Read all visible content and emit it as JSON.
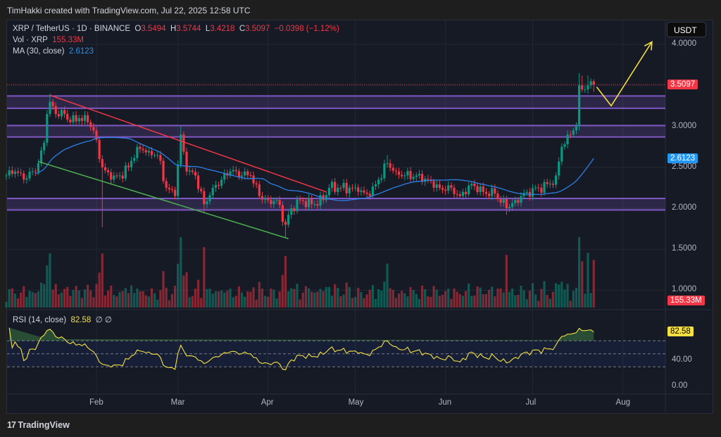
{
  "credit": "TimHakki created with TradingView.com, Jul 22, 2025 12:58 UTC",
  "header": {
    "symbol": "XRP / TetherUS · 1D · BINANCE",
    "o_label": "O",
    "open": "3.5494",
    "h_label": "H",
    "high": "3.5744",
    "l_label": "L",
    "low": "3.4218",
    "c_label": "C",
    "close": "3.5097",
    "change": "−0.0398 (−1.12%)",
    "vol_label": "Vol · XRP",
    "vol_value": "155.33M",
    "ma_label": "MA (30, close)",
    "ma_value": "2.6123",
    "rsi_label": "RSI (14, close)",
    "rsi_value": "82.58",
    "rsi_extra": "∅ ∅"
  },
  "currency_button": "USDT",
  "footer_logo": "TradingView",
  "colors": {
    "up": "#089981",
    "down": "#f23645",
    "ma": "#2962ff",
    "rsi": "#f5e042",
    "zone": "#7e57c2",
    "trend_down": "#f23645",
    "trend_support": "#4caf50",
    "projection": "#f5e042"
  },
  "chart_data": {
    "type": "candlestick",
    "price_axis": {
      "ticks": [
        "4.0000",
        "3.0000",
        "2.5000",
        "2.0000",
        "1.5000",
        "1.0000"
      ],
      "range": [
        0.8,
        4.25
      ]
    },
    "time_axis": {
      "ticks": [
        "Feb",
        "Mar",
        "Apr",
        "May",
        "Jun",
        "Jul",
        "Aug"
      ],
      "range": [
        "2025-01-01",
        "2025-08-23"
      ]
    },
    "last_price": "3.5097",
    "ma_last": "2.6123",
    "volume_last": "155.33M",
    "closes": [
      [
        "2025-01-01",
        2.4
      ],
      [
        "2025-01-04",
        2.45
      ],
      [
        "2025-01-07",
        2.35
      ],
      [
        "2025-01-10",
        2.45
      ],
      [
        "2025-01-12",
        2.55
      ],
      [
        "2025-01-14",
        2.8
      ],
      [
        "2025-01-15",
        3.15
      ],
      [
        "2025-01-16",
        3.3,
        3.4
      ],
      [
        "2025-01-18",
        3.15
      ],
      [
        "2025-01-20",
        3.2
      ],
      [
        "2025-01-23",
        3.05
      ],
      [
        "2025-01-26",
        3.1
      ],
      [
        "2025-01-29",
        3.05
      ],
      [
        "2025-01-31",
        2.95
      ],
      [
        "2025-02-02",
        2.6
      ],
      [
        "2025-02-03",
        2.5,
        null,
        1.77
      ],
      [
        "2025-02-06",
        2.35
      ],
      [
        "2025-02-09",
        2.4
      ],
      [
        "2025-02-12",
        2.5
      ],
      [
        "2025-02-15",
        2.75
      ],
      [
        "2025-02-19",
        2.7
      ],
      [
        "2025-02-22",
        2.65
      ],
      [
        "2025-02-25",
        2.25
      ],
      [
        "2025-02-28",
        2.15
      ],
      [
        "2025-03-02",
        2.9,
        3.0
      ],
      [
        "2025-03-04",
        2.45
      ],
      [
        "2025-03-07",
        2.4
      ],
      [
        "2025-03-10",
        2.05,
        null,
        1.95
      ],
      [
        "2025-03-13",
        2.25
      ],
      [
        "2025-03-16",
        2.35
      ],
      [
        "2025-03-19",
        2.45
      ],
      [
        "2025-03-23",
        2.4
      ],
      [
        "2025-03-26",
        2.4
      ],
      [
        "2025-03-29",
        2.15
      ],
      [
        "2025-04-01",
        2.1
      ],
      [
        "2025-04-04",
        2.1
      ],
      [
        "2025-04-07",
        1.8,
        null,
        1.65
      ],
      [
        "2025-04-09",
        2.0
      ],
      [
        "2025-04-12",
        2.1
      ],
      [
        "2025-04-16",
        2.05
      ],
      [
        "2025-04-20",
        2.1
      ],
      [
        "2025-04-22",
        2.25
      ],
      [
        "2025-04-25",
        2.25
      ],
      [
        "2025-04-29",
        2.25
      ],
      [
        "2025-05-02",
        2.2
      ],
      [
        "2025-05-06",
        2.15
      ],
      [
        "2025-05-09",
        2.35
      ],
      [
        "2025-05-12",
        2.55,
        2.65
      ],
      [
        "2025-05-15",
        2.45
      ],
      [
        "2025-05-18",
        2.4
      ],
      [
        "2025-05-22",
        2.4
      ],
      [
        "2025-05-26",
        2.35
      ],
      [
        "2025-05-30",
        2.25
      ],
      [
        "2025-06-03",
        2.25
      ],
      [
        "2025-06-06",
        2.15
      ],
      [
        "2025-06-10",
        2.3
      ],
      [
        "2025-06-14",
        2.2
      ],
      [
        "2025-06-18",
        2.18
      ],
      [
        "2025-06-22",
        2.0,
        null,
        1.92
      ],
      [
        "2025-06-25",
        2.1
      ],
      [
        "2025-06-29",
        2.2
      ],
      [
        "2025-07-03",
        2.25
      ],
      [
        "2025-07-07",
        2.3
      ],
      [
        "2025-07-09",
        2.4
      ],
      [
        "2025-07-11",
        2.75
      ],
      [
        "2025-07-13",
        2.9
      ],
      [
        "2025-07-15",
        2.95
      ],
      [
        "2025-07-16",
        3.0
      ],
      [
        "2025-07-17",
        3.5,
        3.65
      ],
      [
        "2025-07-18",
        3.45,
        3.62
      ],
      [
        "2025-07-19",
        3.45
      ],
      [
        "2025-07-20",
        3.5,
        3.62
      ],
      [
        "2025-07-21",
        3.55
      ],
      [
        "2025-07-22",
        3.5097,
        3.5744,
        3.4218
      ]
    ],
    "zones": [
      [
        3.22,
        3.37
      ],
      [
        2.87,
        3.01
      ],
      [
        1.98,
        2.12
      ]
    ],
    "trendlines": [
      {
        "kind": "resistance",
        "from": [
          "2025-01-16",
          3.38
        ],
        "to": [
          "2025-04-21",
          2.2
        ]
      },
      {
        "kind": "support",
        "from": [
          "2025-01-12",
          2.57
        ],
        "to": [
          "2025-04-08",
          1.63
        ]
      }
    ],
    "projection": [
      [
        "2025-07-23",
        3.48
      ],
      [
        "2025-07-28",
        3.25
      ],
      [
        "2025-08-11",
        4.03
      ]
    ],
    "rsi_axis": {
      "ticks": [
        "82.58",
        "40.00",
        "0.00"
      ],
      "bands": [
        30,
        50,
        70
      ]
    }
  }
}
